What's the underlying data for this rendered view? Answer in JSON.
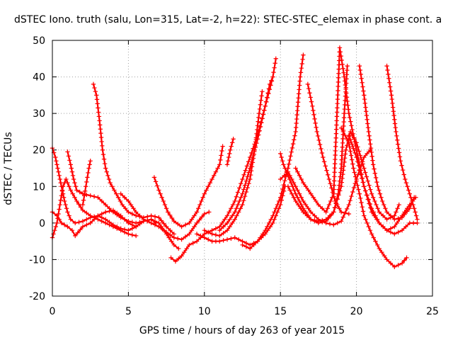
{
  "chart_data": {
    "type": "scatter",
    "title": "dSTEC Iono. truth (salu, Lon=315, Lat=-2, h=22): STEC-STEC_elemax in phase cont. a",
    "xlabel": "GPS time / hours of day 263 of year 2015",
    "ylabel": "dSTEC  / TECUs",
    "xlim": [
      0,
      25
    ],
    "ylim": [
      -20,
      50
    ],
    "x_ticks": [
      0,
      5,
      10,
      15,
      20,
      25
    ],
    "y_ticks": [
      -20,
      -10,
      0,
      10,
      20,
      30,
      40,
      50
    ],
    "grid": true,
    "marker": "+",
    "color": "#ff0000",
    "series": [
      {
        "points": [
          [
            0.0,
            20.5
          ],
          [
            0.2,
            18
          ],
          [
            0.4,
            14
          ],
          [
            0.6,
            10
          ],
          [
            0.8,
            6
          ],
          [
            1.0,
            3
          ],
          [
            1.2,
            1
          ],
          [
            1.5,
            0
          ],
          [
            2.0,
            0.5
          ],
          [
            2.5,
            1.5
          ],
          [
            3.0,
            2
          ],
          [
            3.5,
            1
          ],
          [
            4.0,
            -0.5
          ],
          [
            4.5,
            -1.5
          ],
          [
            5.0,
            -2
          ],
          [
            5.5,
            -1
          ],
          [
            6.0,
            0.5
          ],
          [
            6.5,
            1
          ],
          [
            6.8,
            0
          ]
        ]
      },
      {
        "points": [
          [
            0.0,
            -4
          ],
          [
            0.3,
            0
          ],
          [
            0.5,
            5
          ],
          [
            0.7,
            10
          ],
          [
            0.9,
            12
          ],
          [
            1.2,
            9
          ],
          [
            1.6,
            6
          ],
          [
            2.0,
            3.5
          ],
          [
            2.5,
            2
          ],
          [
            3.0,
            1
          ],
          [
            3.5,
            0
          ],
          [
            4.0,
            -1
          ],
          [
            4.5,
            -2
          ],
          [
            5.0,
            -3
          ],
          [
            5.5,
            -3.5
          ]
        ]
      },
      {
        "points": [
          [
            0.0,
            3
          ],
          [
            0.3,
            2
          ],
          [
            0.6,
            0
          ],
          [
            1.0,
            -1
          ],
          [
            1.3,
            -2
          ],
          [
            1.5,
            -3.5
          ],
          [
            2.0,
            -1
          ],
          [
            2.5,
            0
          ],
          [
            3.0,
            2
          ],
          [
            3.5,
            3
          ],
          [
            4.0,
            3.5
          ],
          [
            4.5,
            2
          ],
          [
            5.0,
            0
          ],
          [
            5.5,
            -1
          ]
        ]
      },
      {
        "points": [
          [
            1.0,
            19.5
          ],
          [
            1.2,
            16
          ],
          [
            1.4,
            12
          ],
          [
            1.6,
            9
          ],
          [
            2.0,
            8
          ],
          [
            2.5,
            7.5
          ],
          [
            3.0,
            7
          ],
          [
            3.5,
            5
          ],
          [
            4.0,
            3
          ],
          [
            4.5,
            1.5
          ],
          [
            5.0,
            0.5
          ],
          [
            5.5,
            0
          ],
          [
            6.0,
            0.5
          ],
          [
            6.5,
            1
          ],
          [
            7.0,
            0
          ],
          [
            7.5,
            -3
          ],
          [
            8.0,
            -6
          ],
          [
            8.3,
            -7
          ]
        ]
      },
      {
        "points": [
          [
            2.0,
            5
          ],
          [
            2.2,
            10
          ],
          [
            2.4,
            15
          ],
          [
            2.5,
            17
          ]
        ]
      },
      {
        "points": [
          [
            2.7,
            38
          ],
          [
            2.9,
            35
          ],
          [
            3.1,
            28
          ],
          [
            3.3,
            20
          ],
          [
            3.5,
            15
          ],
          [
            3.8,
            11
          ],
          [
            4.2,
            8
          ],
          [
            4.6,
            5
          ],
          [
            5.0,
            3
          ],
          [
            5.5,
            2
          ],
          [
            6.0,
            1.5
          ],
          [
            6.5,
            2
          ],
          [
            7.0,
            1.5
          ],
          [
            7.5,
            -1
          ],
          [
            8.0,
            -3
          ]
        ]
      },
      {
        "points": [
          [
            4.5,
            8
          ],
          [
            5.0,
            6
          ],
          [
            5.5,
            3
          ],
          [
            6.0,
            1
          ],
          [
            6.5,
            0
          ],
          [
            7.0,
            -1
          ],
          [
            7.5,
            -2.5
          ],
          [
            8.0,
            -4
          ],
          [
            8.5,
            -4.5
          ],
          [
            9.0,
            -3
          ],
          [
            9.5,
            0
          ],
          [
            10.0,
            2.5
          ],
          [
            10.3,
            3
          ]
        ]
      },
      {
        "points": [
          [
            6.7,
            12.5
          ],
          [
            7.0,
            9
          ],
          [
            7.3,
            6
          ],
          [
            7.6,
            3
          ],
          [
            8.0,
            0.5
          ],
          [
            8.5,
            -1
          ],
          [
            9.0,
            0
          ],
          [
            9.5,
            3
          ],
          [
            10.0,
            8
          ],
          [
            10.5,
            12
          ],
          [
            11.0,
            16
          ],
          [
            11.2,
            21
          ]
        ]
      },
      {
        "points": [
          [
            7.8,
            -9.5
          ],
          [
            8.1,
            -10.5
          ],
          [
            8.5,
            -9
          ],
          [
            9.0,
            -6
          ],
          [
            9.5,
            -5
          ],
          [
            10.0,
            -3
          ],
          [
            10.5,
            -2
          ],
          [
            11.0,
            -1
          ],
          [
            11.5,
            2
          ],
          [
            12.0,
            6
          ],
          [
            12.5,
            12
          ],
          [
            13.0,
            18
          ],
          [
            13.5,
            24
          ],
          [
            14.0,
            32
          ],
          [
            14.5,
            40
          ],
          [
            14.7,
            45
          ]
        ]
      },
      {
        "points": [
          [
            9.5,
            -3
          ],
          [
            10.0,
            -4
          ],
          [
            10.5,
            -5
          ],
          [
            11.0,
            -5
          ],
          [
            11.5,
            -4.5
          ],
          [
            12.0,
            -4
          ],
          [
            12.5,
            -5
          ],
          [
            13.0,
            -6
          ],
          [
            13.5,
            -5
          ],
          [
            14.0,
            -3
          ],
          [
            14.5,
            0
          ],
          [
            15.0,
            5
          ],
          [
            15.3,
            10
          ]
        ]
      },
      {
        "points": [
          [
            10.0,
            -2
          ],
          [
            10.5,
            -3
          ],
          [
            11.0,
            -3.5
          ],
          [
            11.5,
            -2
          ],
          [
            12.0,
            1
          ],
          [
            12.5,
            5
          ],
          [
            13.0,
            12
          ],
          [
            13.3,
            20
          ],
          [
            13.6,
            30
          ],
          [
            13.8,
            36
          ]
        ]
      },
      {
        "points": [
          [
            11.0,
            -2
          ],
          [
            11.5,
            0
          ],
          [
            12.0,
            3
          ],
          [
            12.5,
            8
          ],
          [
            13.0,
            15
          ],
          [
            13.5,
            23
          ],
          [
            14.0,
            32
          ],
          [
            14.3,
            38
          ],
          [
            14.5,
            40
          ]
        ]
      },
      {
        "points": [
          [
            11.5,
            16
          ],
          [
            11.7,
            20
          ],
          [
            11.9,
            23
          ]
        ]
      },
      {
        "points": [
          [
            12.5,
            -6
          ],
          [
            13.0,
            -7
          ],
          [
            13.5,
            -5
          ],
          [
            14.0,
            -2
          ],
          [
            14.5,
            2
          ],
          [
            15.0,
            7
          ],
          [
            15.5,
            15
          ],
          [
            16.0,
            25
          ],
          [
            16.3,
            40
          ],
          [
            16.5,
            46
          ]
        ]
      },
      {
        "points": [
          [
            15.0,
            19
          ],
          [
            15.2,
            16
          ],
          [
            15.5,
            13
          ],
          [
            16.0,
            8
          ],
          [
            16.5,
            4
          ],
          [
            17.0,
            1
          ],
          [
            17.5,
            0
          ],
          [
            18.0,
            0.5
          ],
          [
            18.5,
            3
          ],
          [
            19.0,
            10
          ],
          [
            19.3,
            20
          ],
          [
            19.6,
            25
          ],
          [
            20.0,
            22
          ],
          [
            20.5,
            15
          ],
          [
            21.0,
            8
          ],
          [
            21.5,
            3
          ],
          [
            22.0,
            1
          ],
          [
            22.5,
            2
          ],
          [
            22.8,
            5
          ]
        ]
      },
      {
        "points": [
          [
            15.0,
            12
          ],
          [
            15.5,
            14
          ],
          [
            16.0,
            10
          ],
          [
            16.5,
            6
          ],
          [
            17.0,
            3
          ],
          [
            17.5,
            1
          ],
          [
            18.0,
            0
          ],
          [
            18.5,
            -0.5
          ],
          [
            19.0,
            0.5
          ],
          [
            19.5,
            5
          ],
          [
            20.0,
            12
          ],
          [
            20.5,
            18
          ],
          [
            20.9,
            20
          ]
        ]
      },
      {
        "points": [
          [
            15.5,
            10
          ],
          [
            16.0,
            6
          ],
          [
            16.5,
            3
          ],
          [
            17.0,
            1
          ],
          [
            17.5,
            0.5
          ],
          [
            18.0,
            1
          ],
          [
            18.5,
            3
          ],
          [
            18.8,
            8
          ],
          [
            19.0,
            15
          ],
          [
            19.2,
            30
          ],
          [
            19.4,
            43
          ]
        ]
      },
      {
        "points": [
          [
            16.0,
            15
          ],
          [
            16.5,
            11
          ],
          [
            17.0,
            8
          ],
          [
            17.5,
            5
          ],
          [
            18.0,
            3
          ],
          [
            18.5,
            8
          ],
          [
            18.9,
            48
          ],
          [
            19.2,
            40
          ],
          [
            19.5,
            30
          ],
          [
            20.0,
            20
          ],
          [
            20.5,
            10
          ],
          [
            21.0,
            3
          ],
          [
            21.5,
            0
          ],
          [
            22.0,
            -2
          ],
          [
            22.5,
            -1
          ],
          [
            23.0,
            2
          ],
          [
            23.5,
            5
          ],
          [
            23.9,
            7
          ]
        ]
      },
      {
        "points": [
          [
            16.8,
            38
          ],
          [
            17.1,
            32
          ],
          [
            17.4,
            25
          ],
          [
            17.8,
            18
          ],
          [
            18.2,
            12
          ],
          [
            18.6,
            6
          ],
          [
            19.0,
            3
          ],
          [
            19.5,
            2.5
          ]
        ]
      },
      {
        "points": [
          [
            19.5,
            24
          ],
          [
            20.0,
            18
          ],
          [
            20.5,
            10
          ],
          [
            21.0,
            4
          ],
          [
            21.5,
            0
          ],
          [
            22.0,
            -2
          ],
          [
            22.5,
            -3
          ],
          [
            23.0,
            -2
          ],
          [
            23.5,
            0
          ],
          [
            24.0,
            0
          ]
        ]
      },
      {
        "points": [
          [
            20.2,
            43
          ],
          [
            20.5,
            35
          ],
          [
            20.8,
            25
          ],
          [
            21.1,
            16
          ],
          [
            21.4,
            10
          ],
          [
            21.7,
            6
          ],
          [
            22.0,
            3
          ],
          [
            22.5,
            1
          ],
          [
            23.0,
            1.5
          ],
          [
            23.5,
            4
          ],
          [
            23.8,
            7
          ]
        ]
      },
      {
        "points": [
          [
            19.0,
            26
          ],
          [
            19.5,
            22
          ],
          [
            19.8,
            15
          ],
          [
            20.2,
            8
          ],
          [
            20.5,
            2
          ],
          [
            21.0,
            -3
          ],
          [
            21.5,
            -7
          ],
          [
            22.0,
            -10
          ],
          [
            22.5,
            -12
          ],
          [
            23.0,
            -11
          ],
          [
            23.3,
            -9.5
          ]
        ]
      },
      {
        "points": [
          [
            22.0,
            43
          ],
          [
            22.3,
            35
          ],
          [
            22.6,
            25
          ],
          [
            22.9,
            17
          ],
          [
            23.2,
            12
          ],
          [
            23.5,
            8
          ],
          [
            23.8,
            4
          ],
          [
            24.0,
            1
          ]
        ]
      }
    ]
  }
}
